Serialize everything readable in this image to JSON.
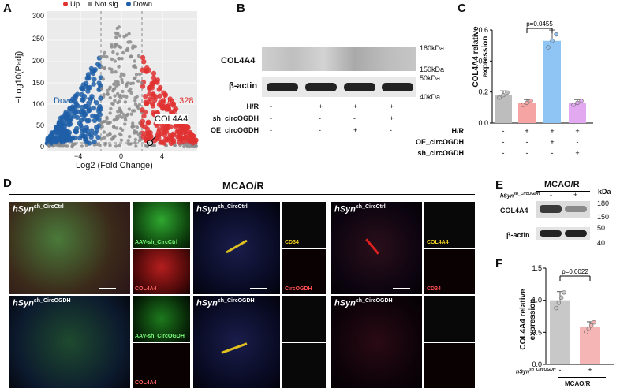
{
  "panels": {
    "A": "A",
    "B": "B",
    "C": "C",
    "D": "D",
    "E": "E",
    "F": "F"
  },
  "panelA": {
    "legend": [
      {
        "label": "Up",
        "color": "#e03131"
      },
      {
        "label": "Not sig",
        "color": "#8c8c8c"
      },
      {
        "label": "Down",
        "color": "#1f5fa8"
      }
    ],
    "down_label": "Down: 120",
    "up_label": "Up: 328",
    "gene_label": "COL4A4",
    "y_axis_label": "−Log10(Padj)",
    "x_axis_label": "Log2 (Fold Change)",
    "y_ticks": [
      "300",
      "250",
      "200",
      "150",
      "100",
      "50",
      "0"
    ],
    "x_ticks": [
      "−4",
      "0",
      "4"
    ]
  },
  "panelB": {
    "band1": "COL4A4",
    "band2": "β-actin",
    "markers": [
      "180kDa",
      "150kDa",
      "50kDa",
      "40kDa"
    ],
    "rows": [
      {
        "label": "H/R",
        "vals": [
          "-",
          "+",
          "+",
          "+"
        ]
      },
      {
        "label": "sh_circOGDH",
        "vals": [
          "-",
          "-",
          "-",
          "+"
        ]
      },
      {
        "label": "OE_circOGDH",
        "vals": [
          "-",
          "-",
          "+",
          "-"
        ]
      }
    ]
  },
  "chart_data": [
    {
      "type": "bar",
      "categories": [
        "1",
        "2",
        "3",
        "4"
      ],
      "values": [
        0.18,
        0.13,
        0.53,
        0.13
      ],
      "ylabel": "COL4A4 relative expression",
      "ylim": [
        0,
        0.6
      ],
      "yticks": [
        "0.0",
        "0.2",
        "0.4",
        "0.6"
      ],
      "annotation": "p=0.0455",
      "colors": [
        "#bdbdbd",
        "#f5a3a3",
        "#8ec5f5",
        "#e2a8f0"
      ],
      "rows": [
        {
          "label": "H/R",
          "vals": [
            "-",
            "+",
            "+",
            "+"
          ]
        },
        {
          "label": "OE_circOGDH",
          "vals": [
            "-",
            "-",
            "+",
            "-"
          ]
        },
        {
          "label": "sh_circOGDH",
          "vals": [
            "-",
            "-",
            "-",
            "+"
          ]
        }
      ]
    },
    {
      "type": "bar",
      "categories": [
        "-",
        "+"
      ],
      "values": [
        1.0,
        0.58
      ],
      "ylabel": "COL4A4 relative expression",
      "ylim": [
        0,
        1.5
      ],
      "yticks": [
        "0.0",
        "0.5",
        "1.0",
        "1.5"
      ],
      "annotation": "p=0.0022",
      "colors": [
        "#c8c8c8",
        "#f5b5b5"
      ],
      "xgroup": "MCAO/R"
    }
  ],
  "panelD": {
    "title": "MCAO/R",
    "ctrl": "hSyn",
    "ctrl_sup": "sh_CircCtrl",
    "ogdh_sup": "sh_CircOGDH",
    "tags": [
      "AAV-sh_CircCtrl",
      "COL4A4",
      "CD34",
      "CircOGDH",
      "COL4A4",
      "CD34",
      "AAV-sh_CircOGDH",
      "COL4A4"
    ]
  },
  "panelE": {
    "title": "MCAO/R",
    "kda": "kDa",
    "lane_label": "hSyn",
    "lane_sup": "sh_CircOGDH",
    "lanes": [
      "-",
      "+"
    ],
    "band1": "COL4A4",
    "band2": "β-actin",
    "markers": [
      "180",
      "150",
      "50",
      "40"
    ]
  },
  "panelF": {
    "xlabel": "hSyn",
    "xsup": "sh_CircOGDH",
    "group": "MCAO/R"
  }
}
